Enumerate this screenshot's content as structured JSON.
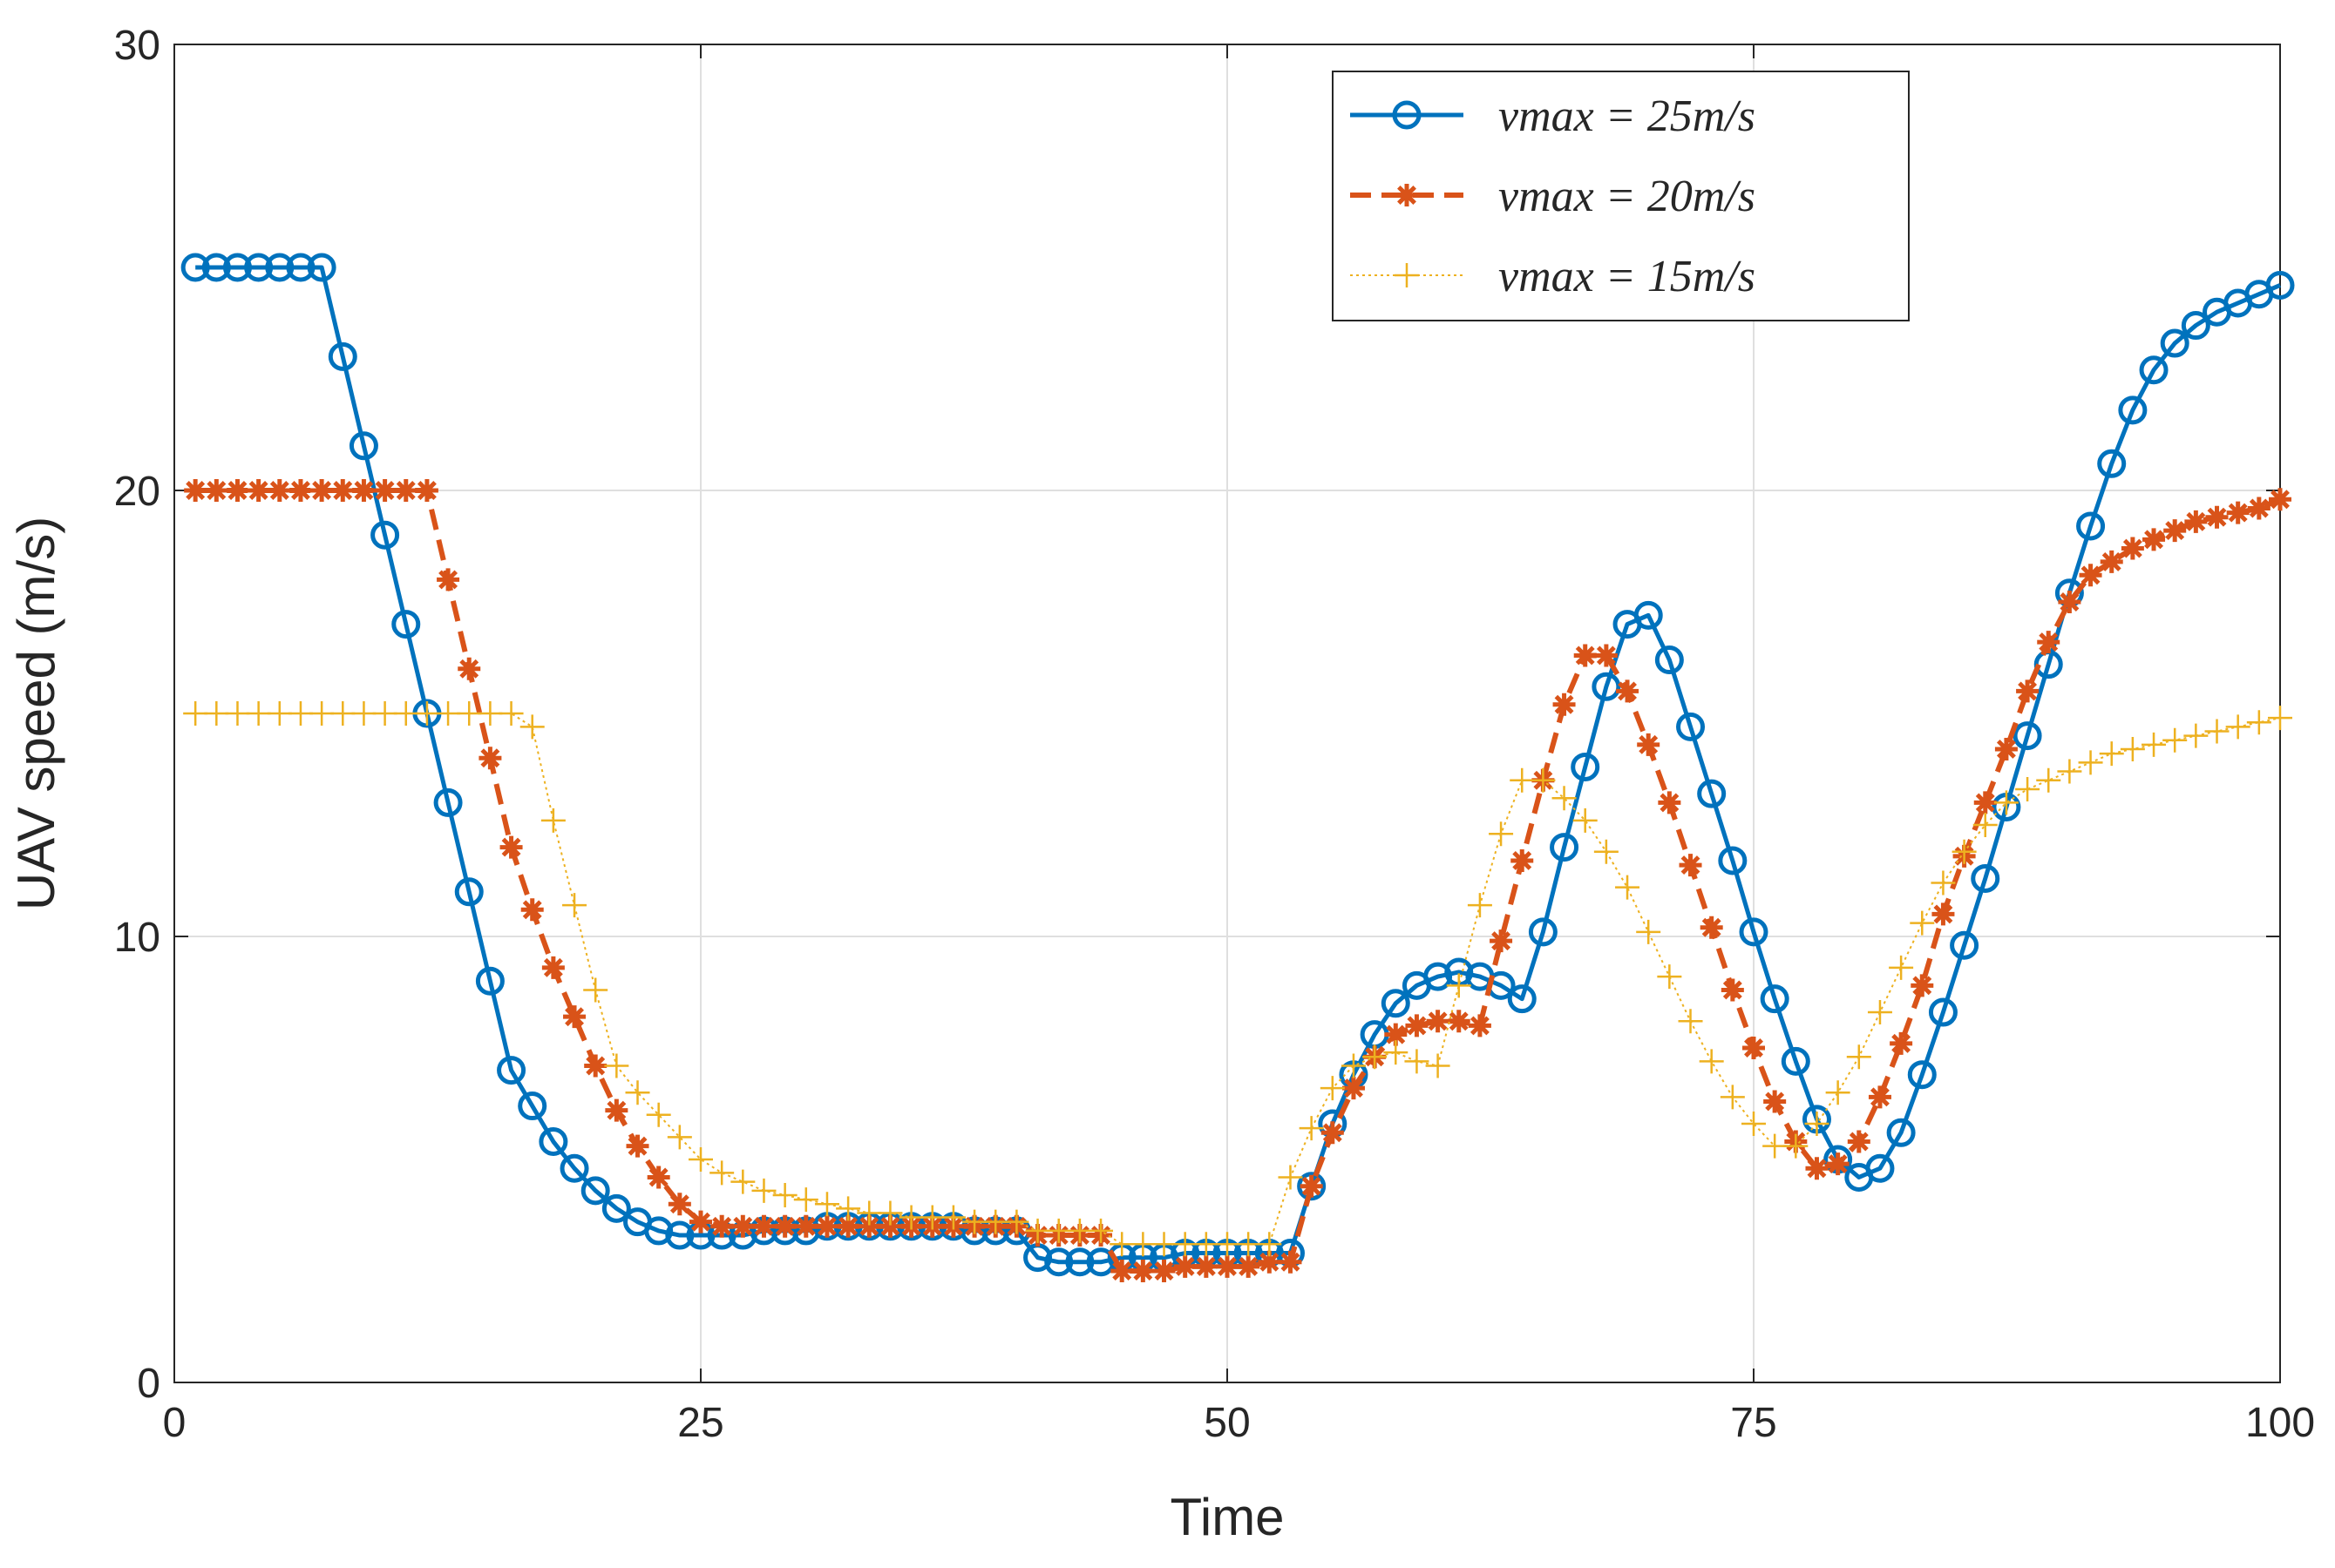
{
  "chart_data": {
    "type": "line",
    "xlabel": "Time",
    "ylabel": "UAV speed (m/s)",
    "x": [
      1,
      2,
      3,
      4,
      5,
      6,
      7,
      8,
      9,
      10,
      11,
      12,
      13,
      14,
      15,
      16,
      17,
      18,
      19,
      20,
      21,
      22,
      23,
      24,
      25,
      26,
      27,
      28,
      29,
      30,
      31,
      32,
      33,
      34,
      35,
      36,
      37,
      38,
      39,
      40,
      41,
      42,
      43,
      44,
      45,
      46,
      47,
      48,
      49,
      50,
      51,
      52,
      53,
      54,
      55,
      56,
      57,
      58,
      59,
      60,
      61,
      62,
      63,
      64,
      65,
      66,
      67,
      68,
      69,
      70,
      71,
      72,
      73,
      74,
      75,
      76,
      77,
      78,
      79,
      80,
      81,
      82,
      83,
      84,
      85,
      86,
      87,
      88,
      89,
      90,
      91,
      92,
      93,
      94,
      95,
      96,
      97,
      98,
      99,
      100
    ],
    "series": [
      {
        "name": "vmax = 25m/s",
        "color": "#0072BD",
        "marker": "circle",
        "linestyle": "solid",
        "values": [
          25,
          25,
          25,
          25,
          25,
          25,
          25,
          23,
          21,
          19,
          17,
          15,
          13,
          11,
          9,
          7,
          6.2,
          5.4,
          4.8,
          4.3,
          3.9,
          3.6,
          3.4,
          3.3,
          3.3,
          3.3,
          3.3,
          3.4,
          3.4,
          3.4,
          3.5,
          3.5,
          3.5,
          3.5,
          3.5,
          3.5,
          3.5,
          3.4,
          3.4,
          3.4,
          2.8,
          2.7,
          2.7,
          2.7,
          2.8,
          2.8,
          2.8,
          2.9,
          2.9,
          2.9,
          2.9,
          2.9,
          2.9,
          4.4,
          5.8,
          6.9,
          7.8,
          8.5,
          8.9,
          9.1,
          9.2,
          9.1,
          8.9,
          8.6,
          10.1,
          12.0,
          13.8,
          15.6,
          17.0,
          17.2,
          16.2,
          14.7,
          13.2,
          11.7,
          10.1,
          8.6,
          7.2,
          5.9,
          5.0,
          4.6,
          4.8,
          5.6,
          6.9,
          8.3,
          9.8,
          11.3,
          12.9,
          14.5,
          16.1,
          17.7,
          19.2,
          20.6,
          21.8,
          22.7,
          23.3,
          23.7,
          24.0,
          24.2,
          24.4,
          24.6
        ]
      },
      {
        "name": "vmax = 20m/s",
        "color": "#D95319",
        "marker": "asterisk",
        "linestyle": "dashed",
        "values": [
          20,
          20,
          20,
          20,
          20,
          20,
          20,
          20,
          20,
          20,
          20,
          20,
          18,
          16,
          14,
          12,
          10.6,
          9.3,
          8.2,
          7.1,
          6.1,
          5.3,
          4.6,
          4.0,
          3.6,
          3.5,
          3.5,
          3.5,
          3.5,
          3.5,
          3.5,
          3.5,
          3.5,
          3.5,
          3.5,
          3.5,
          3.5,
          3.5,
          3.5,
          3.5,
          3.3,
          3.3,
          3.3,
          3.3,
          2.5,
          2.5,
          2.5,
          2.6,
          2.6,
          2.6,
          2.6,
          2.7,
          2.7,
          4.4,
          5.6,
          6.6,
          7.3,
          7.8,
          8.0,
          8.1,
          8.1,
          8.0,
          9.9,
          11.7,
          13.5,
          15.2,
          16.3,
          16.3,
          15.5,
          14.3,
          13.0,
          11.6,
          10.2,
          8.8,
          7.5,
          6.3,
          5.4,
          4.8,
          4.9,
          5.4,
          6.4,
          7.6,
          8.9,
          10.5,
          11.8,
          13.0,
          14.2,
          15.5,
          16.6,
          17.5,
          18.1,
          18.4,
          18.7,
          18.9,
          19.1,
          19.3,
          19.4,
          19.5,
          19.6,
          19.8
        ]
      },
      {
        "name": "vmax = 15m/s",
        "color": "#EDB120",
        "marker": "plus",
        "linestyle": "dotted",
        "values": [
          15,
          15,
          15,
          15,
          15,
          15,
          15,
          15,
          15,
          15,
          15,
          15,
          15,
          15,
          15,
          15,
          14.7,
          12.6,
          10.7,
          8.8,
          7.1,
          6.5,
          6.0,
          5.5,
          5.0,
          4.7,
          4.5,
          4.3,
          4.2,
          4.1,
          4.0,
          3.9,
          3.8,
          3.8,
          3.7,
          3.7,
          3.7,
          3.6,
          3.6,
          3.6,
          3.4,
          3.4,
          3.4,
          3.4,
          3.1,
          3.1,
          3.1,
          3.1,
          3.1,
          3.1,
          3.1,
          3.1,
          4.6,
          5.7,
          6.6,
          7.1,
          7.3,
          7.4,
          7.2,
          7.1,
          8.9,
          10.7,
          12.3,
          13.5,
          13.5,
          13.1,
          12.6,
          11.9,
          11.1,
          10.1,
          9.1,
          8.1,
          7.2,
          6.4,
          5.8,
          5.3,
          5.3,
          5.8,
          6.5,
          7.3,
          8.3,
          9.3,
          10.3,
          11.2,
          11.9,
          12.5,
          13.0,
          13.3,
          13.5,
          13.7,
          13.9,
          14.1,
          14.2,
          14.3,
          14.4,
          14.5,
          14.6,
          14.7,
          14.8,
          14.9
        ]
      }
    ],
    "xlim": [
      0,
      100
    ],
    "xticks": [
      0,
      25,
      50,
      75,
      100
    ],
    "ylim": [
      0,
      30
    ],
    "yticks": [
      0,
      10,
      20,
      30
    ],
    "grid": true,
    "legend": "northeast"
  }
}
